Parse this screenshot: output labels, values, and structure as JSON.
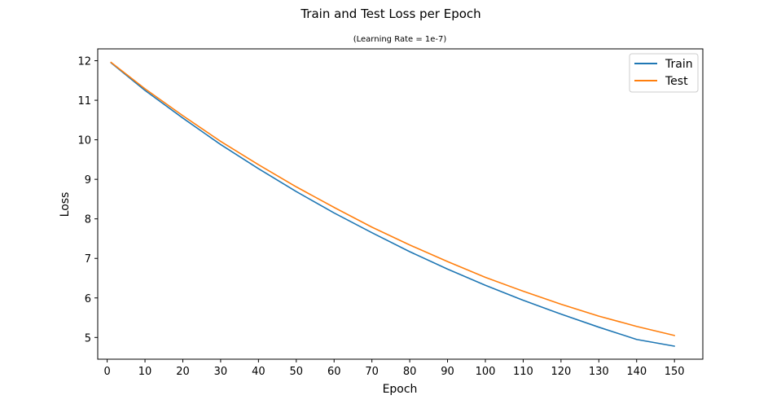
{
  "chart_data": {
    "type": "line",
    "title": "Train and Test Loss per Epoch",
    "subtitle": "(Learning Rate = 1e-7)",
    "xlabel": "Epoch",
    "ylabel": "Loss",
    "xlim": [
      -2.5,
      157.5
    ],
    "ylim": [
      4.45,
      12.3
    ],
    "xticks": [
      0,
      10,
      20,
      30,
      40,
      50,
      60,
      70,
      80,
      90,
      100,
      110,
      120,
      130,
      140,
      150
    ],
    "yticks": [
      5,
      6,
      7,
      8,
      9,
      10,
      11,
      12
    ],
    "grid": false,
    "legend_position": "upper-right",
    "x": [
      1,
      10,
      20,
      30,
      40,
      50,
      60,
      70,
      80,
      90,
      100,
      110,
      120,
      130,
      140,
      150
    ],
    "series": [
      {
        "name": "Train",
        "color": "#1f77b4",
        "values": [
          11.95,
          11.25,
          10.55,
          9.88,
          9.27,
          8.69,
          8.15,
          7.65,
          7.17,
          6.73,
          6.32,
          5.94,
          5.59,
          5.26,
          4.95,
          4.78
        ]
      },
      {
        "name": "Test",
        "color": "#ff7f0e",
        "values": [
          11.96,
          11.29,
          10.61,
          9.96,
          9.37,
          8.81,
          8.29,
          7.79,
          7.34,
          6.92,
          6.52,
          6.17,
          5.84,
          5.54,
          5.28,
          5.05
        ]
      }
    ]
  }
}
